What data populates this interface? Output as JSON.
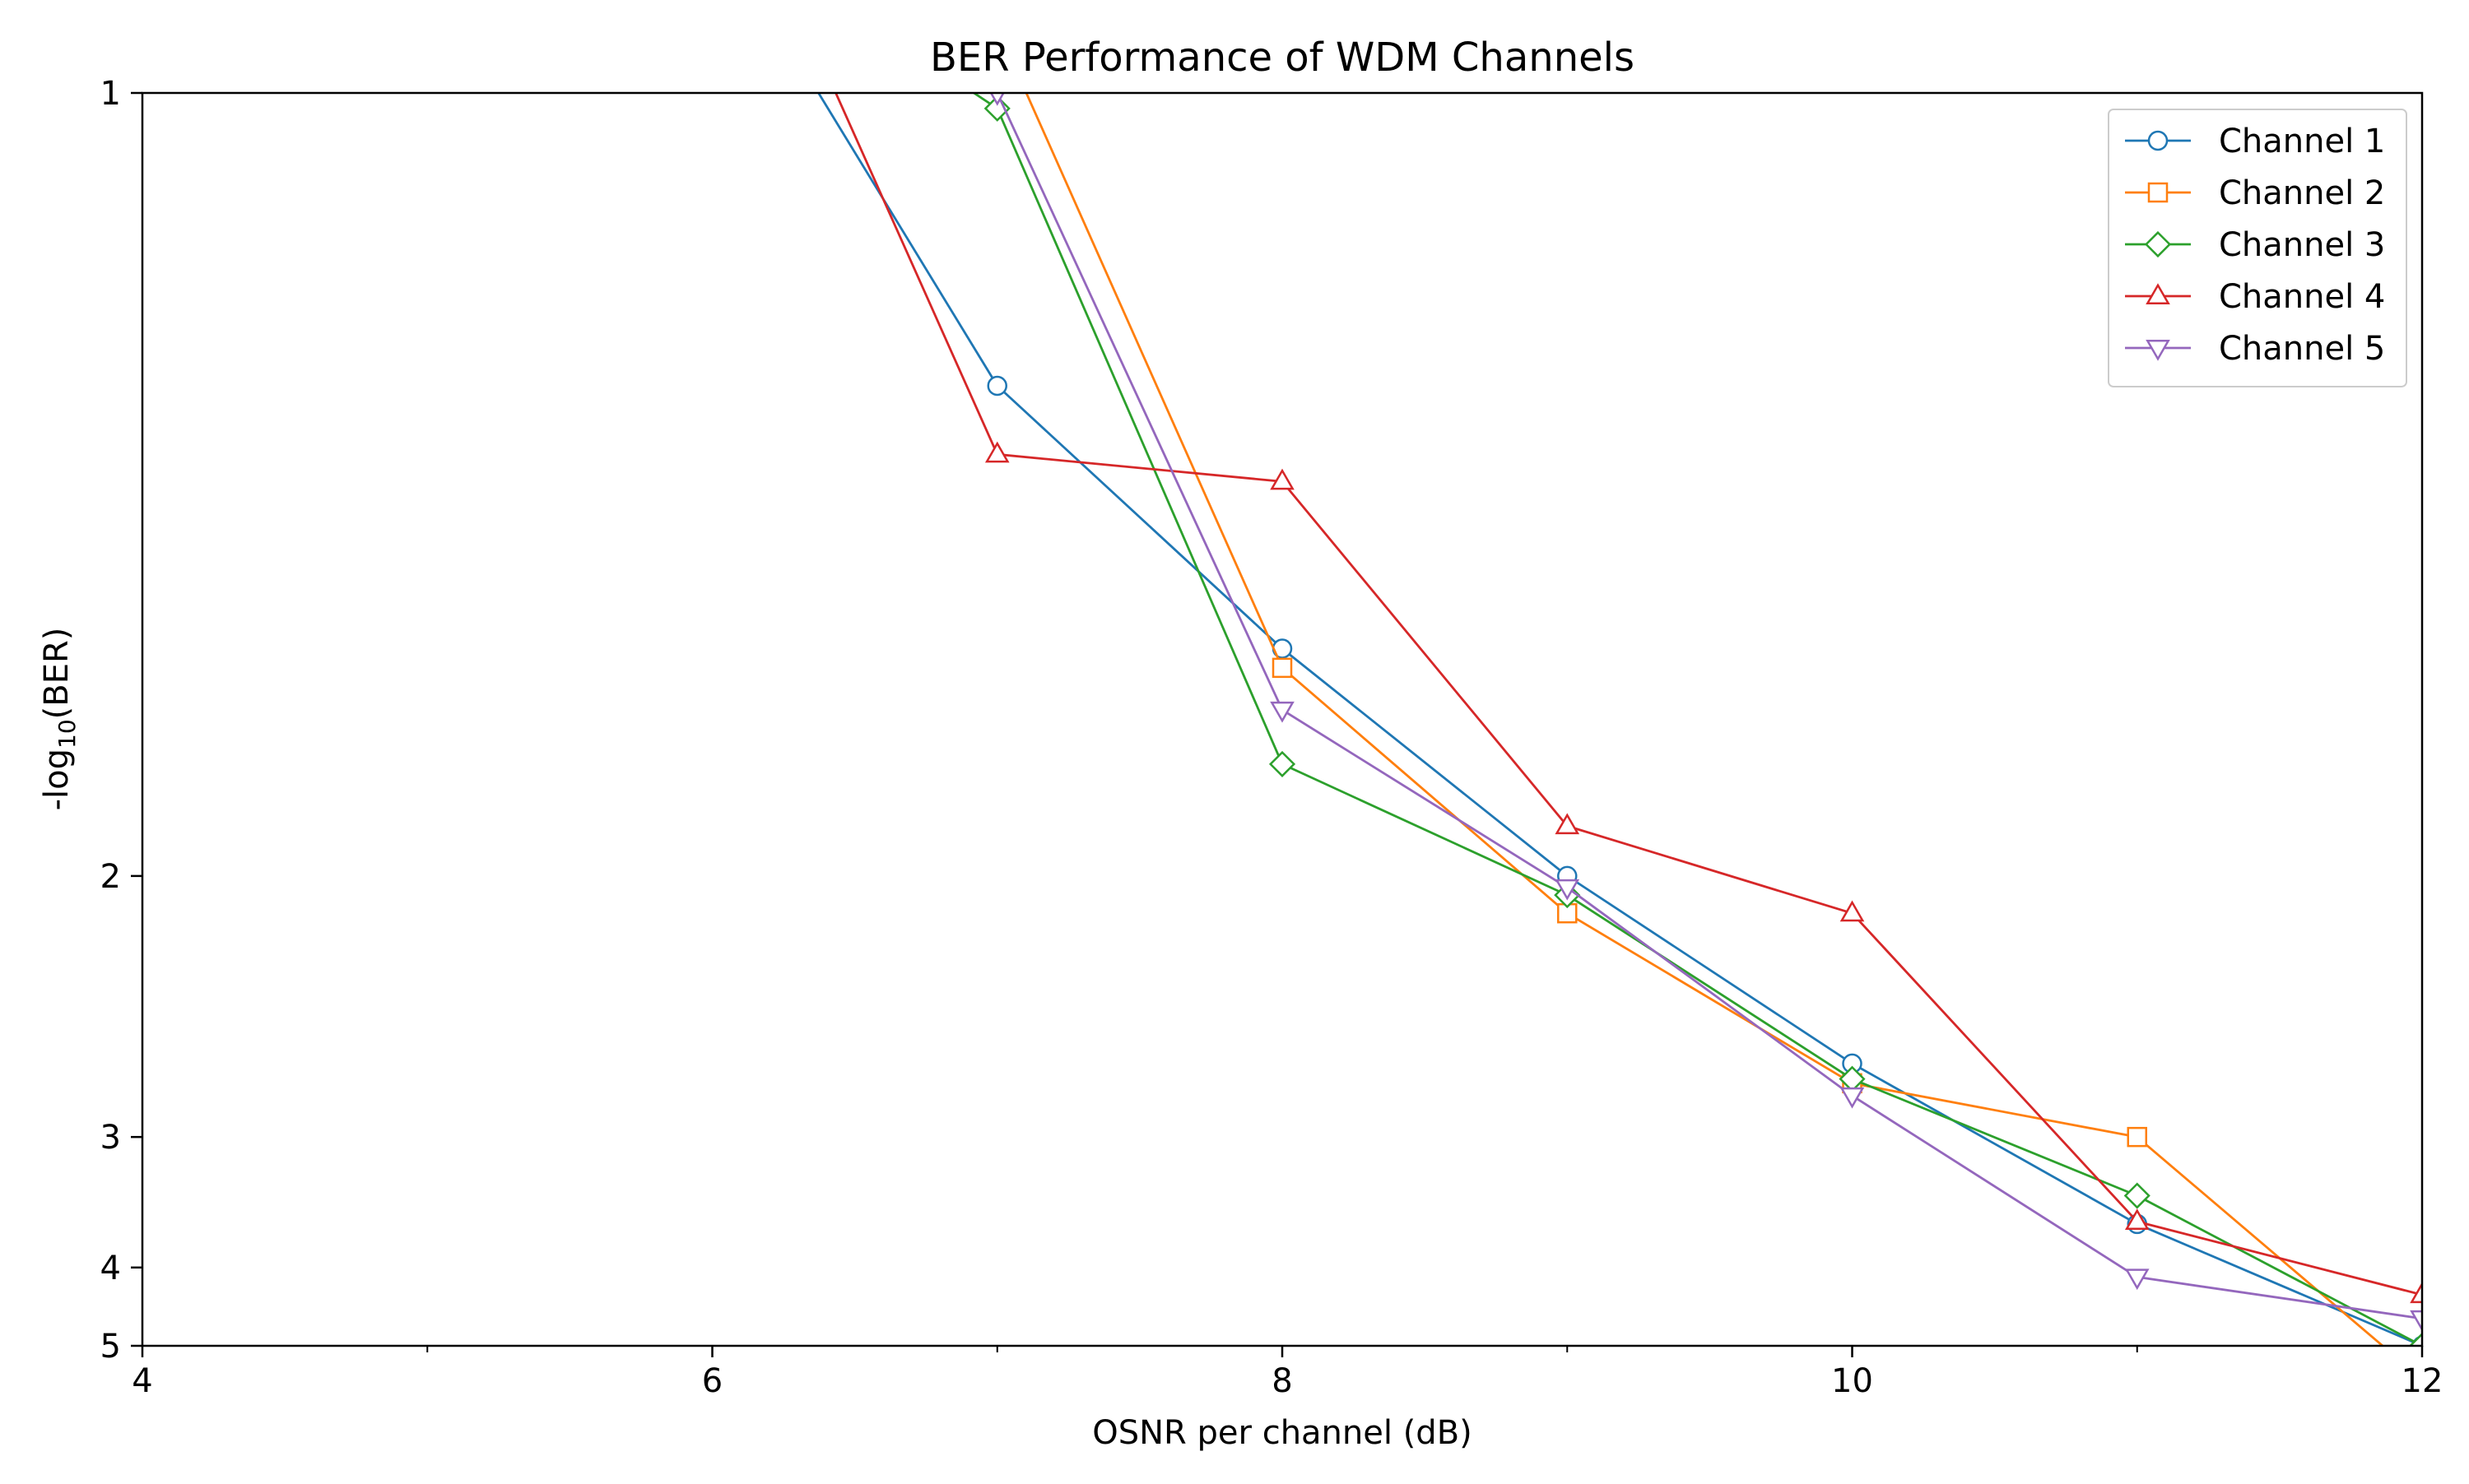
{
  "chart_data": {
    "type": "line",
    "title": "BER Performance of WDM Channels",
    "xlabel": "OSNR per channel (dB)",
    "ylabel": {
      "prefix": "-log",
      "subscript": "10",
      "suffix": "(BER)"
    },
    "xlim": [
      4,
      12
    ],
    "ylim": [
      1,
      5
    ],
    "y_scale": "reciprocal (inverted, 1 at top, 5 at bottom)",
    "x_ticks": [
      4,
      6,
      8,
      10,
      12
    ],
    "x_minor_ticks": [
      5,
      7,
      9,
      11
    ],
    "y_ticks": [
      1,
      2,
      3,
      4,
      5
    ],
    "grid": false,
    "legend_position": "top-right",
    "series": [
      {
        "name": "Channel 1",
        "color": "#1f77b4",
        "marker": "circle",
        "x": [
          6,
          7,
          8,
          9,
          10,
          11,
          12
        ],
        "y": [
          0.9,
          1.23,
          1.55,
          2.0,
          2.63,
          3.6,
          5.0
        ]
      },
      {
        "name": "Channel 2",
        "color": "#ff7f0e",
        "marker": "square",
        "x": [
          6,
          7,
          8,
          9,
          10,
          11,
          12
        ],
        "y": [
          0.7,
          0.96,
          1.58,
          2.1,
          2.72,
          3.0,
          5.6
        ]
      },
      {
        "name": "Channel 3",
        "color": "#2ca02c",
        "marker": "diamond",
        "x": [
          6,
          7,
          8,
          9,
          10,
          11,
          12
        ],
        "y": [
          0.9,
          1.01,
          1.75,
          2.05,
          2.7,
          3.38,
          5.0
        ]
      },
      {
        "name": "Channel 4",
        "color": "#d62728",
        "marker": "triangle-up",
        "x": [
          6,
          7,
          8,
          9,
          10,
          11,
          12
        ],
        "y": [
          0.85,
          1.3,
          1.33,
          1.88,
          2.1,
          3.58,
          4.3
        ]
      },
      {
        "name": "Channel 5",
        "color": "#9467bd",
        "marker": "triangle-down",
        "x": [
          6,
          7,
          8,
          9,
          10,
          11,
          12
        ],
        "y": [
          0.85,
          1.0,
          1.65,
          2.03,
          2.78,
          4.1,
          4.6
        ]
      }
    ]
  }
}
